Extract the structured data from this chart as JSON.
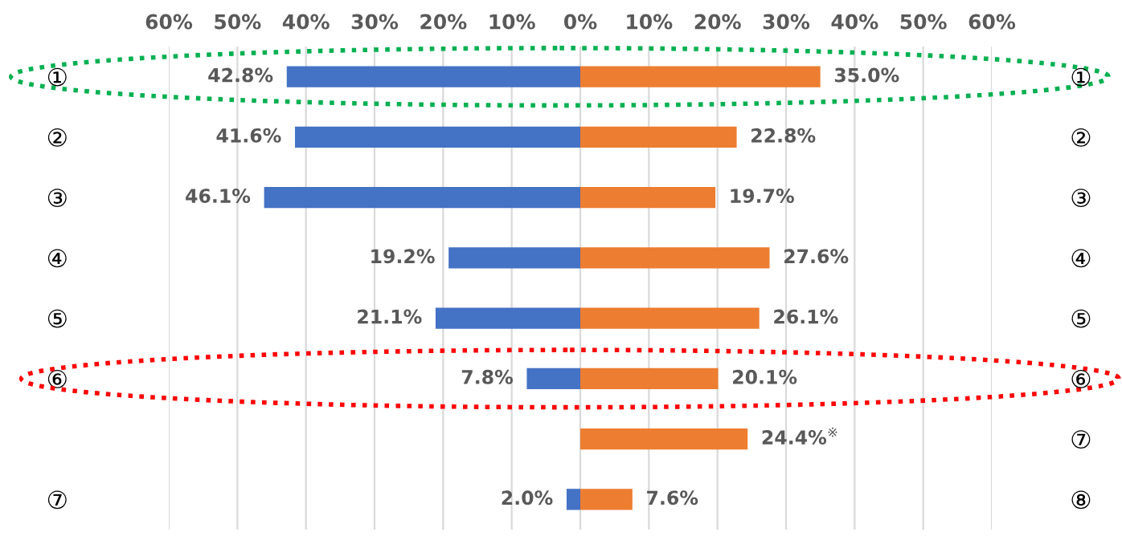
{
  "chart_data": {
    "type": "bar",
    "orientation": "horizontal",
    "categories": [
      "①",
      "②",
      "③",
      "④",
      "⑤",
      "⑥",
      null,
      "⑦"
    ],
    "y2_categories": [
      "①",
      "②",
      "③",
      "④",
      "⑤",
      "⑥",
      "⑦",
      "⑧"
    ],
    "series": [
      {
        "color": "#4472c4",
        "values": [
          42.8,
          41.6,
          46.1,
          19.2,
          21.1,
          7.8,
          null,
          2.0
        ],
        "base": [
          -42.8,
          -41.6,
          -46.1,
          -19.2,
          -21.1,
          -7.8,
          null,
          -2.0
        ],
        "value_labels": [
          "42.8%",
          "41.6%",
          "46.1%",
          "19.2%",
          "21.1%",
          "7.8%",
          null,
          "2.0%"
        ]
      },
      {
        "color": "#ed7d31",
        "values": [
          35.0,
          22.8,
          19.7,
          27.6,
          26.1,
          20.1,
          24.4,
          7.6
        ],
        "value_labels": [
          "35.0%",
          "22.8%",
          "19.7%",
          "27.6%",
          "26.1%",
          "20.1%",
          "24.4%$^{※}$",
          "7.6%"
        ]
      }
    ],
    "xlim": [
      -60,
      60
    ],
    "xticks": [
      {
        "value": -60,
        "label": "60%"
      },
      {
        "value": -50,
        "label": "50%"
      },
      {
        "value": -40,
        "label": "40%"
      },
      {
        "value": -30,
        "label": "30%"
      },
      {
        "value": -20,
        "label": "20%"
      },
      {
        "value": -10,
        "label": "10%"
      },
      {
        "value": 0,
        "label": "0%"
      },
      {
        "value": 10,
        "label": "10%"
      },
      {
        "value": 20,
        "label": "20%"
      },
      {
        "value": 30,
        "label": "30%"
      },
      {
        "value": 40,
        "label": "40%"
      },
      {
        "value": 50,
        "label": "50%"
      },
      {
        "value": 60,
        "label": "60%"
      }
    ],
    "grid": "x"
  }
}
